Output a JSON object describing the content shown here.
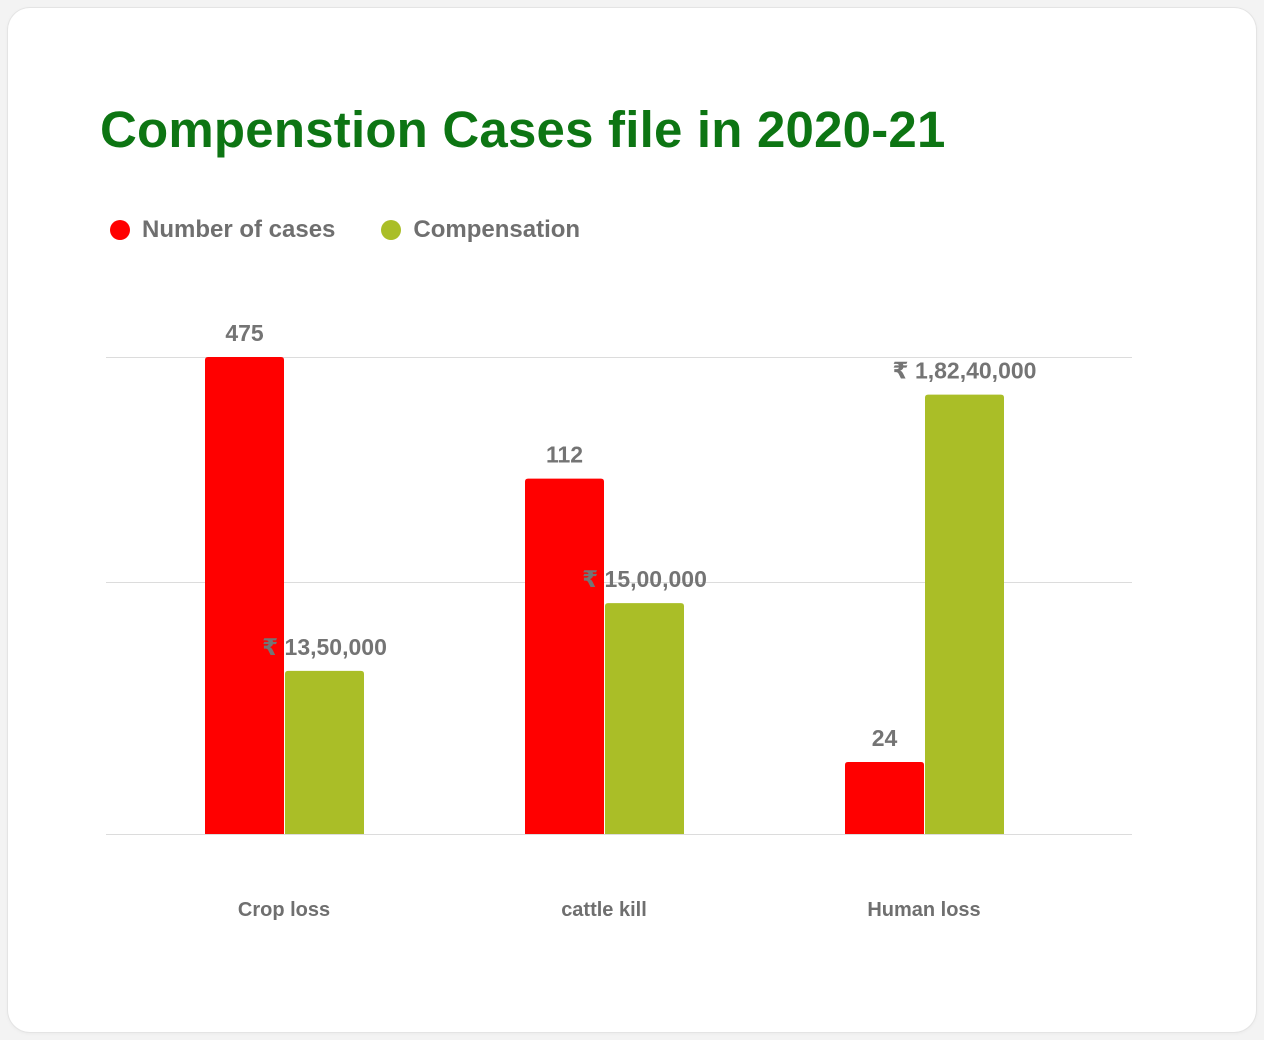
{
  "chart_data": {
    "type": "bar",
    "title": "Compenstion Cases file in 2020-21",
    "categories": [
      "Crop loss",
      "cattle kill",
      "Human loss"
    ],
    "series": [
      {
        "name": "Number of cases",
        "color": "#ff0000",
        "values": [
          475,
          112,
          24
        ],
        "value_labels": [
          "475",
          "112",
          "24"
        ],
        "bar_height_share": [
          1.0,
          0.745,
          0.151
        ]
      },
      {
        "name": "Compensation",
        "color": "#aabe27",
        "values": [
          1350000,
          1500000,
          18240000
        ],
        "value_labels": [
          "₹ 13,50,000",
          "₹ 15,00,000",
          "₹ 1,82,40,000"
        ],
        "bar_height_share": [
          0.342,
          0.484,
          0.921
        ]
      }
    ],
    "grid": true,
    "gridline_count": 3,
    "legend_position": "top-left"
  }
}
